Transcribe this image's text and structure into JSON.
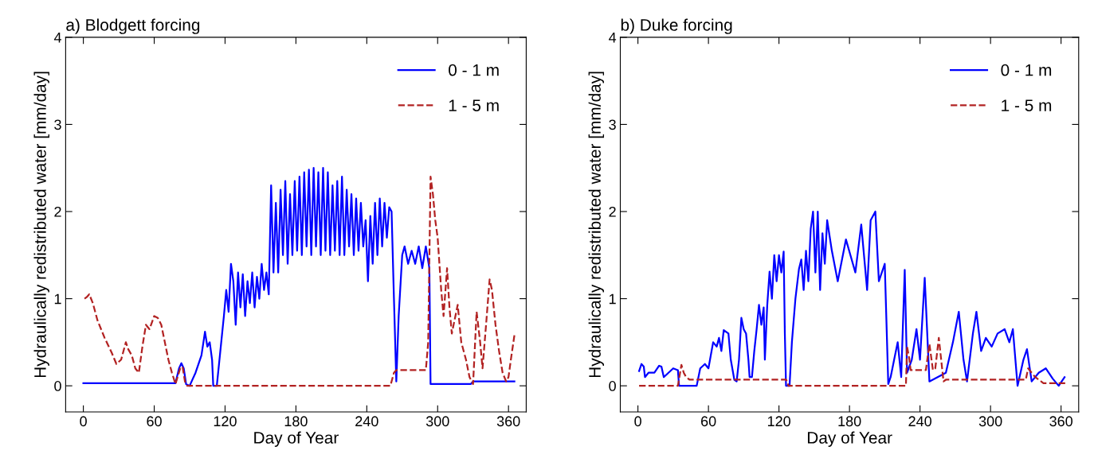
{
  "chart_data": [
    {
      "type": "line",
      "title": "a) Blodgett forcing",
      "xlabel": "Day of Year",
      "ylabel": "Hydraulically redistributed water [mm/day]",
      "xlim": [
        -15,
        375
      ],
      "ylim": [
        -0.3,
        4
      ],
      "xticks": [
        0,
        60,
        120,
        180,
        240,
        300,
        360
      ],
      "yticks": [
        0,
        1,
        2,
        3,
        4
      ],
      "grid": false,
      "legend": "top right",
      "marker": "none",
      "series": [
        {
          "name": "0 - 1 m",
          "color": "#0000ff",
          "line_style": "solid",
          "x": [
            0,
            78,
            81,
            83,
            85,
            87,
            90,
            95,
            100,
            103,
            105,
            107,
            109,
            110,
            113,
            116,
            119,
            121,
            123,
            125,
            127,
            129,
            131,
            133,
            135,
            137,
            139,
            141,
            143,
            145,
            147,
            149,
            151,
            153,
            155,
            157,
            159,
            161,
            163,
            165,
            167,
            169,
            171,
            173,
            175,
            177,
            179,
            181,
            183,
            185,
            187,
            189,
            191,
            193,
            195,
            197,
            199,
            201,
            203,
            205,
            207,
            209,
            211,
            213,
            215,
            217,
            219,
            221,
            223,
            225,
            227,
            229,
            231,
            233,
            235,
            237,
            239,
            241,
            243,
            245,
            247,
            249,
            251,
            253,
            255,
            257,
            259,
            261,
            263,
            265,
            267,
            270,
            272,
            275,
            278,
            281,
            284,
            287,
            290,
            293,
            294,
            328,
            330,
            365
          ],
          "values": [
            0.03,
            0.03,
            0.2,
            0.26,
            0.2,
            0.02,
            0.0,
            0.15,
            0.35,
            0.62,
            0.45,
            0.5,
            0.3,
            0.0,
            0.0,
            0.4,
            0.8,
            1.1,
            0.85,
            1.4,
            1.2,
            0.7,
            1.3,
            0.9,
            1.28,
            0.8,
            1.2,
            0.95,
            1.3,
            0.9,
            1.25,
            1.0,
            1.4,
            1.1,
            1.3,
            1.05,
            2.3,
            1.3,
            2.1,
            1.3,
            2.25,
            1.5,
            2.35,
            1.4,
            2.2,
            1.5,
            2.35,
            1.55,
            2.4,
            1.5,
            2.45,
            1.6,
            2.48,
            1.5,
            2.5,
            1.6,
            2.45,
            1.5,
            2.5,
            1.55,
            2.45,
            1.5,
            2.3,
            1.55,
            2.35,
            1.5,
            2.4,
            1.5,
            2.25,
            1.6,
            2.2,
            1.5,
            2.15,
            1.55,
            2.1,
            1.6,
            1.9,
            1.2,
            1.95,
            1.4,
            2.1,
            1.5,
            2.15,
            1.6,
            2.1,
            1.7,
            2.05,
            2.0,
            1.0,
            0.05,
            0.8,
            1.5,
            1.6,
            1.4,
            1.55,
            1.4,
            1.6,
            1.35,
            1.6,
            1.35,
            0.02,
            0.02,
            0.05,
            0.05
          ]
        },
        {
          "name": "1 - 5 m",
          "color": "#b22222",
          "line_style": "dashed",
          "x": [
            1,
            3,
            5,
            8,
            12,
            18,
            24,
            28,
            32,
            36,
            38,
            41,
            44,
            47,
            50,
            53,
            56,
            60,
            63,
            66,
            69,
            72,
            75,
            78,
            82,
            84,
            86,
            88,
            260,
            263,
            265,
            290,
            292,
            294,
            296,
            298,
            300,
            302,
            303,
            305,
            308,
            310,
            312,
            317,
            320,
            324,
            327,
            330,
            333,
            336,
            338,
            341,
            344,
            346,
            349,
            352,
            355,
            358,
            360,
            362,
            365
          ],
          "values": [
            1.0,
            1.02,
            1.05,
            0.95,
            0.75,
            0.55,
            0.38,
            0.25,
            0.3,
            0.5,
            0.42,
            0.35,
            0.2,
            0.15,
            0.45,
            0.7,
            0.65,
            0.8,
            0.78,
            0.7,
            0.5,
            0.3,
            0.15,
            0.02,
            0.2,
            0.22,
            0.05,
            0.0,
            0.0,
            0.15,
            0.18,
            0.18,
            0.5,
            2.4,
            2.2,
            1.9,
            1.7,
            1.3,
            1.1,
            0.8,
            1.35,
            0.9,
            0.6,
            0.93,
            0.5,
            0.3,
            0.1,
            0.02,
            0.85,
            0.5,
            0.2,
            0.7,
            1.22,
            1.1,
            0.7,
            0.4,
            0.15,
            0.05,
            0.1,
            0.3,
            0.58
          ]
        }
      ]
    },
    {
      "type": "line",
      "title": "b) Duke forcing",
      "xlabel": "Day of Year",
      "ylabel": "Hydraulically redistributed water [mm/day]",
      "xlim": [
        -15,
        375
      ],
      "ylim": [
        -0.3,
        4
      ],
      "xticks": [
        0,
        60,
        120,
        180,
        240,
        300,
        360
      ],
      "yticks": [
        0,
        1,
        2,
        3,
        4
      ],
      "grid": false,
      "legend": "top right",
      "marker": "none",
      "series": [
        {
          "name": "0 - 1 m",
          "color": "#0000ff",
          "line_style": "solid",
          "x": [
            1,
            3,
            5,
            6,
            9,
            14,
            18,
            20,
            22,
            26,
            30,
            34,
            35,
            50,
            53,
            57,
            60,
            62,
            64,
            67,
            69,
            71,
            73,
            77,
            79,
            82,
            84,
            86,
            88,
            90,
            92,
            94,
            95,
            97,
            99,
            101,
            103,
            105,
            107,
            108,
            110,
            112,
            114,
            116,
            118,
            120,
            122,
            124,
            125,
            126,
            129,
            131,
            134,
            137,
            139,
            141,
            143,
            145,
            147,
            149,
            151,
            153,
            155,
            157,
            159,
            161,
            165,
            170,
            177,
            185,
            190,
            195,
            198,
            202,
            205,
            210,
            213,
            215,
            218,
            221,
            224,
            227,
            229,
            233,
            237,
            240,
            244,
            248,
            255,
            262,
            268,
            273,
            277,
            280,
            285,
            288,
            292,
            296,
            301,
            306,
            312,
            316,
            319,
            323,
            328,
            331,
            335,
            341,
            347,
            353,
            358,
            363
          ],
          "values": [
            0.17,
            0.25,
            0.22,
            0.1,
            0.15,
            0.15,
            0.23,
            0.22,
            0.1,
            0.15,
            0.2,
            0.18,
            0.0,
            0.0,
            0.2,
            0.25,
            0.2,
            0.35,
            0.5,
            0.45,
            0.55,
            0.4,
            0.64,
            0.6,
            0.3,
            0.07,
            0.05,
            0.3,
            0.78,
            0.65,
            0.6,
            0.3,
            0.1,
            0.1,
            0.4,
            0.65,
            0.93,
            0.7,
            0.9,
            0.3,
            0.92,
            1.31,
            1.0,
            1.5,
            1.2,
            1.5,
            1.3,
            1.54,
            0.6,
            0.0,
            0.0,
            0.5,
            1.0,
            1.34,
            1.45,
            1.1,
            1.55,
            1.2,
            1.8,
            2.0,
            1.3,
            2.0,
            1.1,
            1.75,
            1.4,
            1.9,
            1.55,
            1.2,
            1.68,
            1.3,
            1.85,
            1.1,
            1.9,
            2.0,
            1.2,
            1.4,
            0.02,
            0.1,
            0.3,
            0.5,
            0.1,
            1.33,
            0.15,
            0.3,
            0.65,
            0.3,
            1.24,
            0.05,
            0.1,
            0.15,
            0.5,
            0.85,
            0.3,
            0.05,
            0.6,
            0.85,
            0.4,
            0.55,
            0.45,
            0.6,
            0.65,
            0.5,
            0.65,
            0.0,
            0.3,
            0.42,
            0.05,
            0.15,
            0.2,
            0.08,
            0.0,
            0.1
          ]
        },
        {
          "name": "1 - 5 m",
          "color": "#b22222",
          "line_style": "dashed",
          "x": [
            1,
            34,
            37,
            39,
            41,
            44,
            126,
            127,
            128,
            228,
            229,
            231,
            232,
            245,
            248,
            251,
            253,
            256,
            260,
            262,
            330,
            332,
            335,
            338,
            345,
            365
          ],
          "values": [
            0.0,
            0.0,
            0.24,
            0.15,
            0.1,
            0.07,
            0.07,
            0.05,
            0.0,
            0.0,
            0.45,
            0.3,
            0.18,
            0.18,
            0.48,
            0.18,
            0.2,
            0.55,
            0.05,
            0.07,
            0.07,
            0.2,
            0.15,
            0.1,
            0.03,
            0.03
          ]
        }
      ]
    }
  ]
}
